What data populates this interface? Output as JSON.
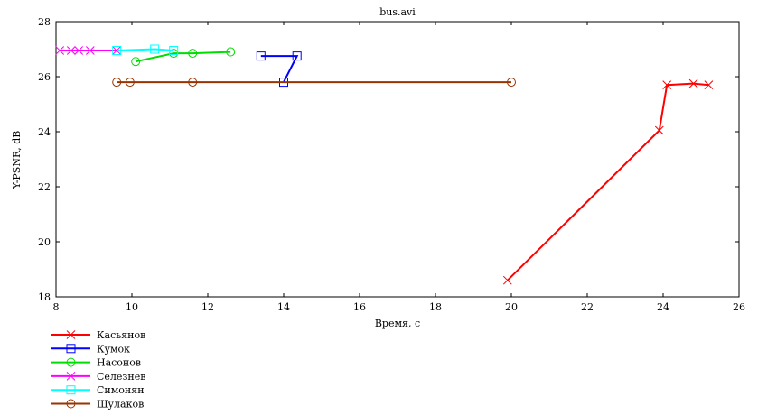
{
  "chart_data": {
    "type": "line",
    "title": "bus.avi",
    "xlabel": "Время, с",
    "ylabel": "Y-PSNR, dB",
    "xlim": [
      8,
      26
    ],
    "ylim": [
      18,
      28
    ],
    "xticks": [
      8,
      10,
      12,
      14,
      16,
      18,
      20,
      22,
      24,
      26
    ],
    "yticks": [
      18,
      20,
      22,
      24,
      26,
      28
    ],
    "grid": false,
    "legend_position": "bottom-left",
    "series": [
      {
        "name": "Касьянов",
        "color": "#ff0000",
        "marker": "x",
        "points": [
          [
            19.9,
            18.6
          ],
          [
            23.9,
            24.05
          ],
          [
            24.1,
            25.7
          ],
          [
            24.8,
            25.75
          ],
          [
            25.2,
            25.7
          ]
        ]
      },
      {
        "name": "Кумок",
        "color": "#0000ff",
        "marker": "square",
        "points": [
          [
            13.4,
            26.75
          ],
          [
            14.35,
            26.75
          ],
          [
            14.0,
            25.8
          ]
        ]
      },
      {
        "name": "Насонов",
        "color": "#00dd00",
        "marker": "circle",
        "points": [
          [
            10.1,
            26.55
          ],
          [
            11.1,
            26.85
          ],
          [
            11.6,
            26.85
          ],
          [
            12.6,
            26.9
          ]
        ]
      },
      {
        "name": "Селезнев",
        "color": "#ff00ff",
        "marker": "x",
        "points": [
          [
            8.1,
            26.95
          ],
          [
            8.4,
            26.95
          ],
          [
            8.6,
            26.95
          ],
          [
            8.9,
            26.95
          ],
          [
            9.6,
            26.95
          ]
        ]
      },
      {
        "name": "Симонян",
        "color": "#00ffff",
        "marker": "square",
        "points": [
          [
            9.6,
            26.95
          ],
          [
            10.6,
            27.0
          ],
          [
            11.1,
            26.95
          ]
        ]
      },
      {
        "name": "Шулаков",
        "color": "#993300",
        "marker": "circle",
        "points": [
          [
            9.6,
            25.8
          ],
          [
            9.95,
            25.8
          ],
          [
            11.6,
            25.8
          ],
          [
            20.0,
            25.8
          ]
        ]
      }
    ]
  }
}
